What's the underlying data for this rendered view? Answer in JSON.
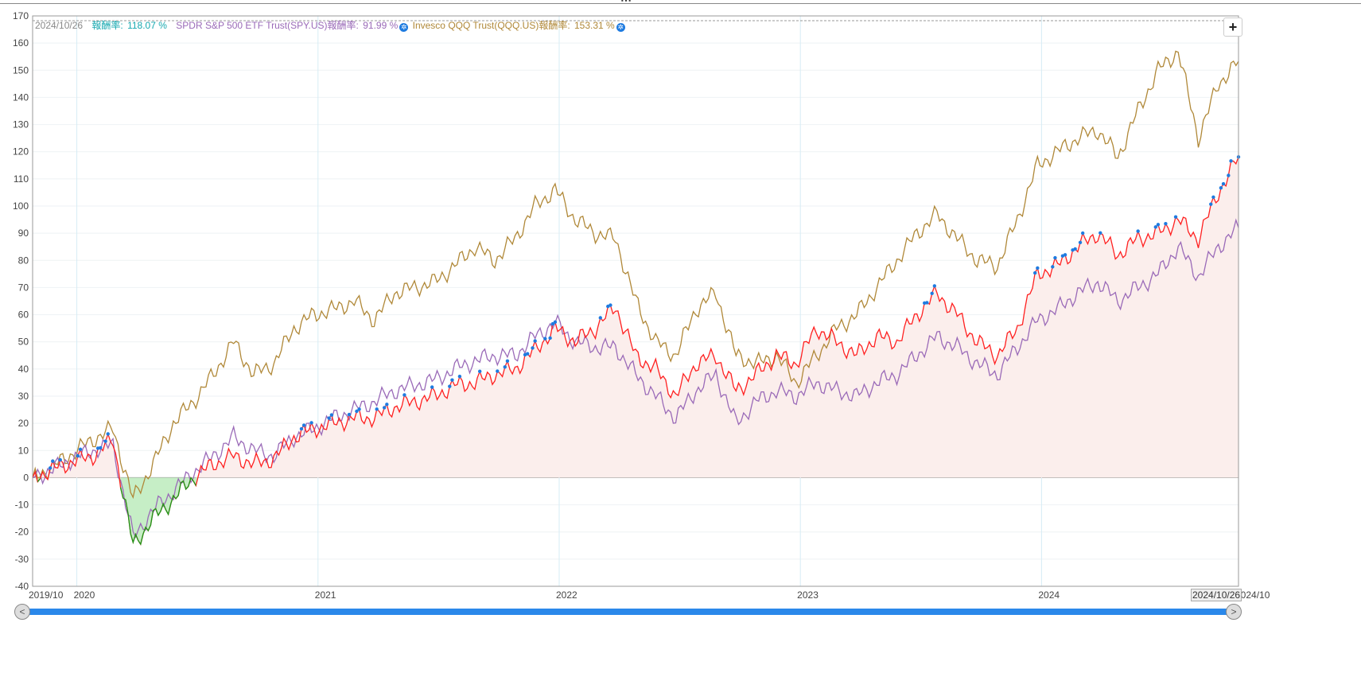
{
  "legend": {
    "date": "2024/10/26",
    "portfolio_label": "報酬率:",
    "portfolio_value": "118.07 %",
    "spy_label": "SPDR S&P 500 ETF Trust(SPY.US)報酬率:",
    "spy_value": "91.99 %",
    "qqq_label": "Invesco QQQ Trust(QQQ.US)報酬率:",
    "qqq_value": "153.31 %"
  },
  "zoom_button": "+",
  "end_date_label": "2024/10/26",
  "colors": {
    "portfolio": "#ff2020",
    "spy": "#9a6ab8",
    "qqq": "#b08838",
    "neg": "#1a9a1a",
    "neg_fill": "#c6eec6",
    "pos_fill": "#fbeeec",
    "high_dot": "#1e7be0",
    "grid": "#eef2f4",
    "vgrid": "#d6ecf5"
  },
  "chart_data": {
    "type": "line",
    "title": "",
    "xlabel": "",
    "ylabel": "",
    "ylim": [
      -40,
      170
    ],
    "yticks": [
      -40,
      -30,
      -20,
      -10,
      0,
      10,
      20,
      30,
      40,
      50,
      60,
      70,
      80,
      90,
      100,
      110,
      120,
      130,
      140,
      150,
      160,
      170
    ],
    "xticks": [
      "2019/10",
      "2020",
      "2021",
      "2022",
      "2023",
      "2024",
      "2024/10"
    ],
    "x": [
      "2019-10",
      "2019-11",
      "2019-12",
      "2020-01",
      "2020-02",
      "2020-03",
      "2020-04",
      "2020-05",
      "2020-06",
      "2020-07",
      "2020-08",
      "2020-09",
      "2020-10",
      "2020-11",
      "2020-12",
      "2021-01",
      "2021-02",
      "2021-03",
      "2021-04",
      "2021-05",
      "2021-06",
      "2021-07",
      "2021-08",
      "2021-09",
      "2021-10",
      "2021-11",
      "2021-12",
      "2022-01",
      "2022-02",
      "2022-03",
      "2022-04",
      "2022-05",
      "2022-06",
      "2022-07",
      "2022-08",
      "2022-09",
      "2022-10",
      "2022-11",
      "2022-12",
      "2023-01",
      "2023-02",
      "2023-03",
      "2023-04",
      "2023-05",
      "2023-06",
      "2023-07",
      "2023-08",
      "2023-09",
      "2023-10",
      "2023-11",
      "2023-12",
      "2024-01",
      "2024-02",
      "2024-03",
      "2024-04",
      "2024-05",
      "2024-06",
      "2024-07",
      "2024-08",
      "2024-09",
      "2024-10"
    ],
    "series": [
      {
        "name": "報酬率",
        "values": [
          0,
          3,
          6,
          8,
          14,
          -25,
          -15,
          -8,
          0,
          5,
          8,
          5,
          7,
          15,
          18,
          20,
          22,
          22,
          26,
          28,
          30,
          34,
          35,
          38,
          40,
          47,
          55,
          50,
          55,
          63,
          45,
          40,
          30,
          42,
          45,
          32,
          38,
          45,
          42,
          55,
          50,
          45,
          52,
          50,
          60,
          68,
          60,
          50,
          45,
          55,
          75,
          78,
          85,
          90,
          82,
          88,
          90,
          95,
          88,
          105,
          118.07
        ]
      },
      {
        "name": "SPDR S&P 500 ETF Trust(SPY.US)",
        "values": [
          0,
          3,
          7,
          10,
          12,
          -22,
          -12,
          -5,
          2,
          8,
          15,
          10,
          8,
          15,
          18,
          22,
          25,
          28,
          32,
          34,
          36,
          40,
          43,
          45,
          45,
          52,
          57,
          50,
          48,
          48,
          38,
          30,
          22,
          32,
          38,
          20,
          28,
          32,
          30,
          35,
          32,
          30,
          35,
          38,
          45,
          52,
          48,
          42,
          38,
          48,
          58,
          62,
          68,
          72,
          65,
          70,
          75,
          85,
          74,
          85,
          91.99
        ]
      },
      {
        "name": "Invesco QQQ Trust(QQQ.US)",
        "values": [
          0,
          4,
          9,
          14,
          18,
          -8,
          5,
          20,
          28,
          38,
          50,
          38,
          42,
          55,
          60,
          62,
          65,
          58,
          68,
          70,
          72,
          78,
          85,
          80,
          88,
          100,
          106,
          95,
          90,
          88,
          65,
          50,
          45,
          62,
          68,
          45,
          42,
          45,
          35,
          45,
          55,
          60,
          70,
          80,
          90,
          97,
          88,
          80,
          78,
          95,
          115,
          120,
          125,
          128,
          118,
          135,
          150,
          157,
          125,
          145,
          153.31
        ]
      }
    ],
    "grid": true,
    "legend_position": "top-left"
  }
}
